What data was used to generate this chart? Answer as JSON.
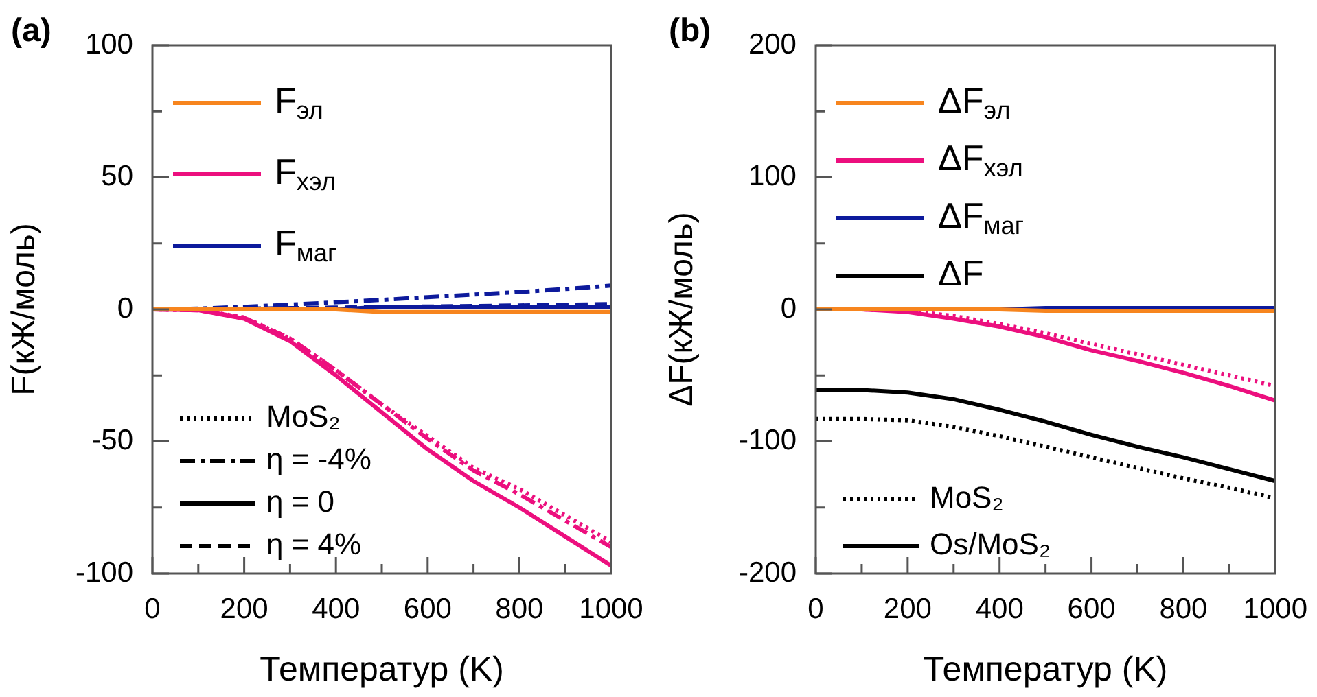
{
  "chart_data": [
    {
      "type": "line",
      "title": "(a)",
      "xlabel": "Температур (K)",
      "ylabel": "F(кЖ/моль)",
      "x": [
        0,
        100,
        200,
        300,
        400,
        500,
        600,
        700,
        800,
        900,
        1000
      ],
      "xlim": [
        0,
        1000
      ],
      "ylim": [
        -100,
        100
      ],
      "xticks": [
        0,
        {
          "value": 100,
          "label": null
        },
        200,
        {
          "value": 300,
          "label": null
        },
        400,
        {
          "value": 500,
          "label": null
        },
        600,
        {
          "value": 700,
          "label": null
        },
        800,
        {
          "value": 900,
          "label": null
        },
        1000
      ],
      "yticks": [
        -100,
        {
          "value": -75,
          "label": null
        },
        -50,
        {
          "value": -25,
          "label": null
        },
        0,
        {
          "value": 25,
          "label": null
        },
        50,
        {
          "value": 75,
          "label": null
        },
        100
      ],
      "grid": false,
      "legend": "left",
      "marker": "none",
      "series": [
        {
          "name": "F$_{эл}$",
          "color": "#f7851e",
          "line_style": "solid",
          "values": [
            0,
            0,
            0,
            0,
            0,
            -1,
            -1,
            -1,
            -1,
            -1,
            -1
          ]
        },
        {
          "name": "F$_{хэл}$",
          "color": "#ec0f7e",
          "line_style": "solid",
          "values": [
            0,
            -0.3,
            -3.5,
            -12,
            -25,
            -39,
            -53,
            -65,
            -75,
            -86,
            -97
          ]
        },
        {
          "color": "#ec0f7e",
          "line_style": "dotted",
          "values": [
            0,
            -0.3,
            -3,
            -11,
            -23,
            -36,
            -48,
            -60,
            -68,
            -78,
            -88
          ]
        },
        {
          "color": "#ec0f7e",
          "line_style": "dashdot",
          "values": [
            0,
            -0.3,
            -3.2,
            -11,
            -23,
            -36,
            -49,
            -61,
            -70,
            -80,
            -90
          ]
        },
        {
          "name": "F$_{маг}$",
          "color": "#0d1a9c",
          "line_style": "solid",
          "values": [
            0,
            0,
            0,
            0,
            0,
            1,
            1,
            1,
            1,
            1,
            1
          ]
        },
        {
          "color": "#0d1a9c",
          "line_style": "dashdot",
          "values": [
            0,
            0.3,
            1,
            1.8,
            2.7,
            3.6,
            4.6,
            5.6,
            6.6,
            7.7,
            9
          ]
        },
        {
          "color": "#0d1a9c",
          "line_style": "dashed",
          "values": [
            0,
            0.1,
            0.3,
            0.5,
            0.7,
            0.9,
            1.1,
            1.3,
            1.5,
            1.8,
            2
          ]
        },
        {
          "name": "MoS₂",
          "color": "#000000",
          "line_style": "dotted",
          "values": [
            null,
            null,
            null,
            null,
            null,
            null,
            null,
            null,
            null,
            null,
            null
          ]
        },
        {
          "name": "η = -4%",
          "color": "#000000",
          "line_style": "dashdot",
          "values": [
            null,
            null,
            null,
            null,
            null,
            null,
            null,
            null,
            null,
            null,
            null
          ]
        },
        {
          "name": "η = 0",
          "color": "#000000",
          "line_style": "solid",
          "values": [
            null,
            null,
            null,
            null,
            null,
            null,
            null,
            null,
            null,
            null,
            null
          ]
        },
        {
          "name": "η = 4%",
          "color": "#000000",
          "line_style": "dashed",
          "values": [
            null,
            null,
            null,
            null,
            null,
            null,
            null,
            null,
            null,
            null,
            null
          ]
        }
      ]
    },
    {
      "type": "line",
      "title": "(b)",
      "xlabel": "Температур (K)",
      "ylabel": "ΔF(кЖ/моль)",
      "x": [
        0,
        100,
        200,
        300,
        400,
        500,
        600,
        700,
        800,
        900,
        1000
      ],
      "xlim": [
        0,
        1000
      ],
      "ylim": [
        -200,
        200
      ],
      "xticks": [
        0,
        {
          "value": 100,
          "label": null
        },
        200,
        {
          "value": 300,
          "label": null
        },
        400,
        {
          "value": 500,
          "label": null
        },
        600,
        {
          "value": 700,
          "label": null
        },
        800,
        {
          "value": 900,
          "label": null
        },
        1000
      ],
      "yticks": [
        -200,
        {
          "value": -150,
          "label": null
        },
        -100,
        {
          "value": -50,
          "label": null
        },
        0,
        {
          "value": 50,
          "label": null
        },
        100,
        {
          "value": 150,
          "label": null
        },
        200
      ],
      "grid": false,
      "legend": "left",
      "marker": "none",
      "series": [
        {
          "name": "ΔF$_{эл}$",
          "color": "#f7851e",
          "line_style": "solid",
          "values": [
            0,
            0,
            0,
            0,
            0,
            -1,
            -1,
            -1,
            -1,
            -1,
            -1
          ]
        },
        {
          "name": "ΔF$_{хэл}$",
          "color": "#ec0f7e",
          "line_style": "solid",
          "values": [
            0,
            0,
            -2,
            -7,
            -13,
            -21,
            -31,
            -39,
            -48,
            -58,
            -69
          ]
        },
        {
          "color": "#ec0f7e",
          "line_style": "dotted",
          "values": [
            0,
            0,
            -1,
            -5,
            -11,
            -18,
            -26,
            -34,
            -42,
            -50,
            -58
          ]
        },
        {
          "name": "ΔF$_{маг}$",
          "color": "#0d1a9c",
          "line_style": "solid",
          "values": [
            null,
            null,
            null,
            null,
            0,
            1,
            1,
            1,
            1,
            1,
            1
          ]
        },
        {
          "name": "ΔF",
          "color": "#000000",
          "line_style": "solid",
          "values": [
            -61,
            -61,
            -63,
            -68,
            -76,
            -85,
            -95,
            -104,
            -112,
            -121,
            -130
          ]
        },
        {
          "color": "#000000",
          "line_style": "dotted",
          "values": [
            -83,
            -83,
            -84,
            -89,
            -96,
            -104,
            -112,
            -120,
            -128,
            -135,
            -143
          ]
        },
        {
          "name": "MoS₂",
          "color": "#000000",
          "line_style": "dotted",
          "values": [
            null,
            null,
            null,
            null,
            null,
            null,
            null,
            null,
            null,
            null,
            null
          ]
        },
        {
          "name": "Os/MoS₂",
          "color": "#000000",
          "line_style": "solid",
          "values": [
            null,
            null,
            null,
            null,
            null,
            null,
            null,
            null,
            null,
            null,
            null
          ]
        }
      ]
    }
  ]
}
